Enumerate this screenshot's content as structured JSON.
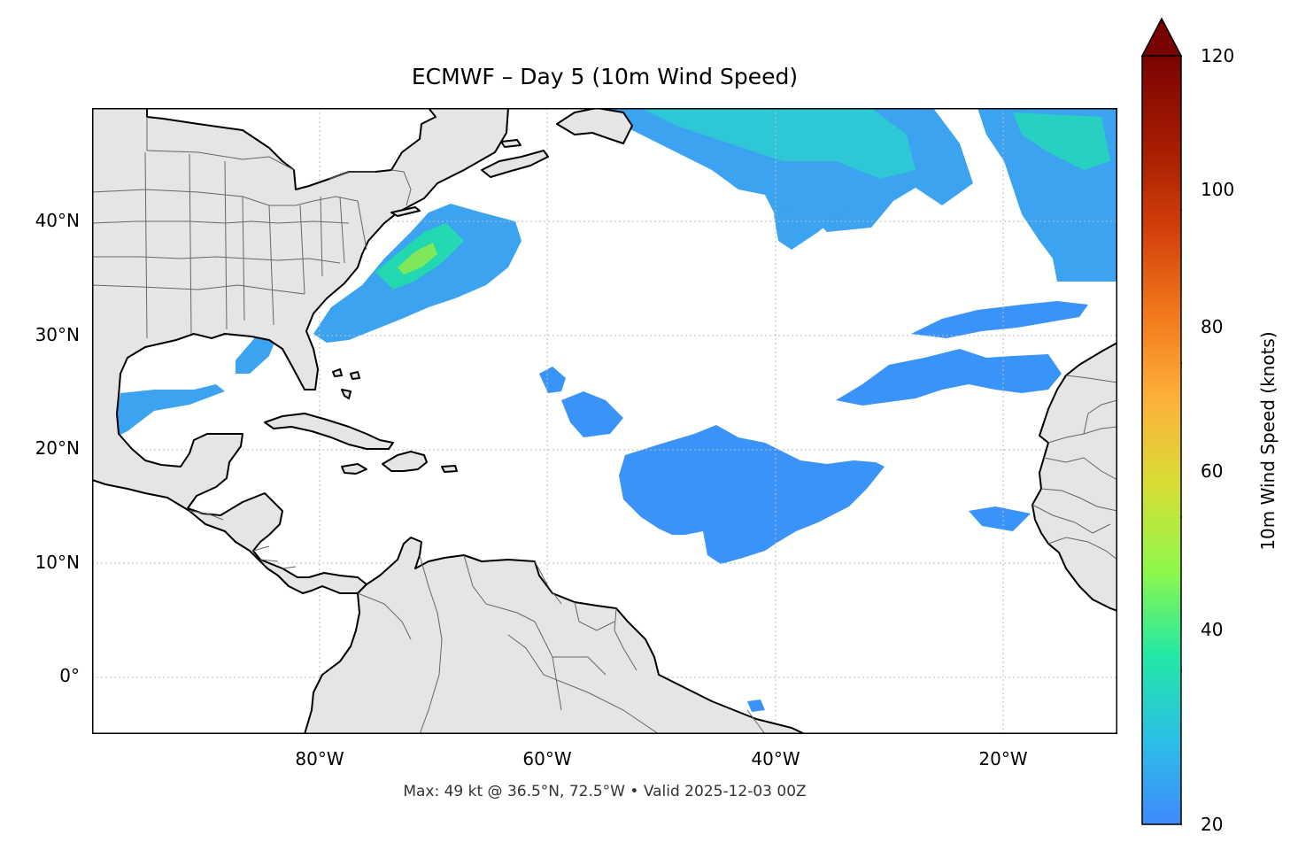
{
  "title": "ECMWF – Day 5 (10m Wind Speed)",
  "footer": "Max: 49 kt @ 36.5°N, 72.5°W • Valid 2025-12-03 00Z",
  "map": {
    "extent": {
      "lon": [
        -100,
        -10
      ],
      "lat": [
        -5,
        50
      ]
    },
    "lat_ticks": [
      "40°N",
      "30°N",
      "20°N",
      "10°N",
      "0°"
    ],
    "lon_ticks": [
      "80°W",
      "60°W",
      "40°W",
      "20°W"
    ],
    "land_color": "#e5e5e5",
    "coast_color": "#000000",
    "border_color": "#666666",
    "grid": "dotted"
  },
  "colorbar": {
    "label": "10m Wind Speed (knots)",
    "ticks": [
      "20",
      "40",
      "60",
      "80",
      "100",
      "120"
    ],
    "min": 20,
    "max": 120,
    "extend": "max",
    "colormap": "turbo",
    "colors": [
      "#3f8afb",
      "#2cbfe6",
      "#22e8a5",
      "#8ff74b",
      "#d7de36",
      "#fdb23b",
      "#f37a1d",
      "#d3420b",
      "#a71c02",
      "#7a0403"
    ]
  },
  "wind_field": {
    "units": "knots",
    "max_value": 49,
    "max_location": {
      "lat": 36.5,
      "lon": -72.5
    }
  }
}
